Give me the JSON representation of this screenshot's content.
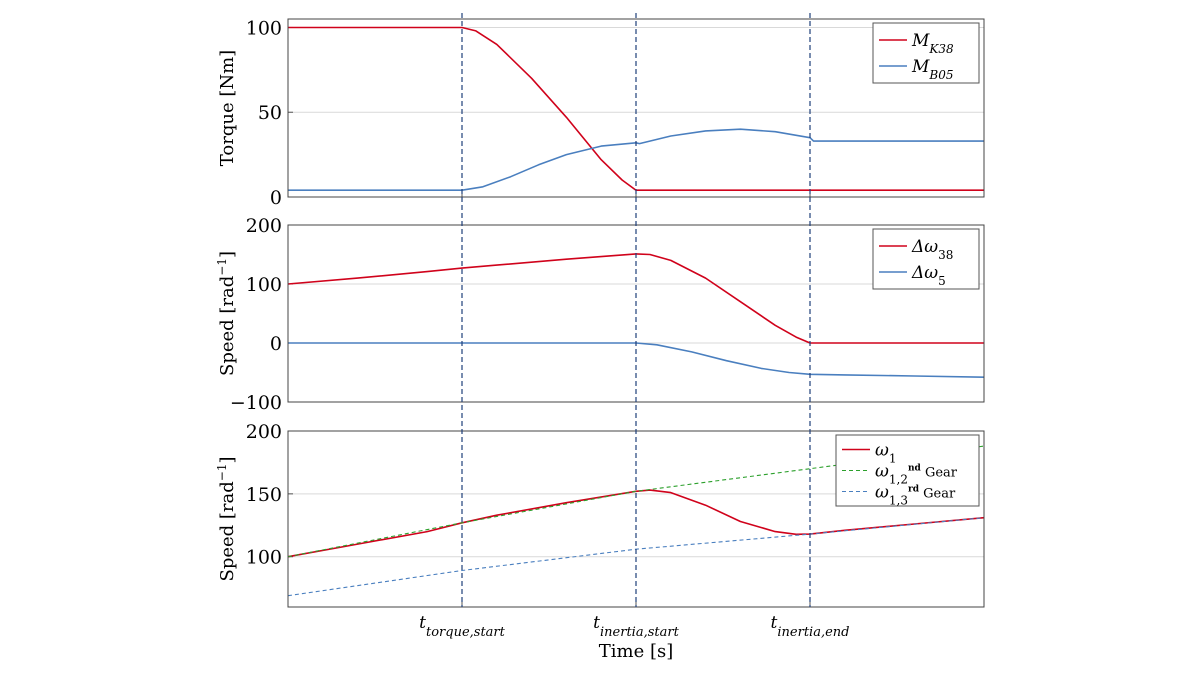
{
  "colors": {
    "red": "#d0021b",
    "blue": "#4a7fbf",
    "green": "#2ca02c",
    "marker": "#1f3f7a",
    "grid": "#d9d9d9"
  },
  "chart_data": {
    "type": "line",
    "xlabel": "Time [s]",
    "x_ticks": [
      {
        "x": 2.5,
        "main": "t",
        "sub": "torque,start"
      },
      {
        "x": 5.0,
        "main": "t",
        "sub": "inertia,start"
      },
      {
        "x": 7.5,
        "main": "t",
        "sub": "inertia,end"
      }
    ],
    "xlim": [
      0,
      10
    ],
    "grid": true,
    "panels": [
      {
        "ylabel": "Torque [Nm]",
        "ylim": [
          0,
          105
        ],
        "yticks": [
          0,
          50,
          100
        ],
        "legend": "top-right",
        "series": [
          {
            "name_main": "M",
            "name_sub": "K38",
            "color": "red",
            "style": "solid",
            "x": [
              0,
              2.5,
              2.7,
              3.0,
              3.5,
              4.0,
              4.5,
              4.8,
              5.0,
              5.5,
              6.0,
              7.0,
              8.0,
              9.0,
              10.0
            ],
            "y": [
              100,
              100,
              98,
              90,
              70,
              47,
              22,
              10,
              4,
              4,
              4,
              4,
              4,
              4,
              4
            ]
          },
          {
            "name_main": "M",
            "name_sub": "B05",
            "color": "blue",
            "style": "solid",
            "x": [
              0,
              2.5,
              2.8,
              3.2,
              3.6,
              4.0,
              4.5,
              5.0,
              5.05,
              5.5,
              6.0,
              6.5,
              7.0,
              7.5,
              7.55,
              8.0,
              9.0,
              10.0
            ],
            "y": [
              4,
              4,
              6,
              12,
              19,
              25,
              30,
              32,
              31.5,
              36,
              39,
              40,
              38.5,
              35,
              33,
              33,
              33,
              33
            ]
          }
        ]
      },
      {
        "ylabel": "Speed [rad",
        "ylabel_sup": "−1",
        "ylabel_end": "]",
        "ylim": [
          -100,
          200
        ],
        "yticks": [
          -100,
          0,
          100,
          200
        ],
        "legend": "top-right",
        "series": [
          {
            "name_main": "Δω",
            "name_sub": "38",
            "color": "red",
            "style": "solid",
            "x": [
              0,
              1,
              2,
              2.5,
              3,
              4,
              5,
              5.2,
              5.5,
              6.0,
              6.5,
              7.0,
              7.3,
              7.5,
              8,
              9,
              10
            ],
            "y": [
              100,
              110,
              121,
              127,
              132,
              142,
              151,
              150,
              140,
              110,
              70,
              30,
              10,
              0,
              0,
              0,
              0
            ]
          },
          {
            "name_main": "Δω",
            "name_sub": "5",
            "color": "blue",
            "style": "solid",
            "x": [
              0,
              2.5,
              5.0,
              5.3,
              5.8,
              6.3,
              6.8,
              7.2,
              7.5,
              8,
              9,
              10
            ],
            "y": [
              0,
              0,
              0,
              -3,
              -15,
              -30,
              -43,
              -50,
              -53,
              -54,
              -56,
              -58
            ]
          }
        ]
      },
      {
        "ylabel": "Speed [rad",
        "ylabel_sup": "−1",
        "ylabel_end": "]",
        "ylim": [
          60,
          200
        ],
        "yticks": [
          100,
          150,
          200
        ],
        "legend": "top-right",
        "series": [
          {
            "name_main": "ω",
            "name_sub": "1",
            "name_tail": "",
            "color": "red",
            "style": "solid",
            "x": [
              0,
              1,
              2,
              2.5,
              3,
              4,
              5,
              5.2,
              5.5,
              6.0,
              6.5,
              7.0,
              7.3,
              7.5,
              8,
              9,
              10
            ],
            "y": [
              100,
              110,
              120,
              127,
              133,
              143,
              152,
              153,
              151,
              141,
              128,
              120,
              117.8,
              118,
              121,
              126,
              131
            ]
          },
          {
            "name_main": "ω",
            "name_sub": "1,2",
            "name_sup": "nd",
            "name_tail": " Gear",
            "color": "green",
            "style": "dashed",
            "x": [
              0,
              2.5,
              5,
              7.5,
              10
            ],
            "y": [
              100,
              127,
              152,
              170,
              188
            ]
          },
          {
            "name_main": "ω",
            "name_sub": "1,3",
            "name_sup": "rd",
            "name_tail": " Gear",
            "color": "blue",
            "style": "dashed",
            "x": [
              0,
              2.5,
              5,
              7.5,
              10
            ],
            "y": [
              69,
              89,
              106,
              118,
              131
            ]
          }
        ]
      }
    ]
  }
}
